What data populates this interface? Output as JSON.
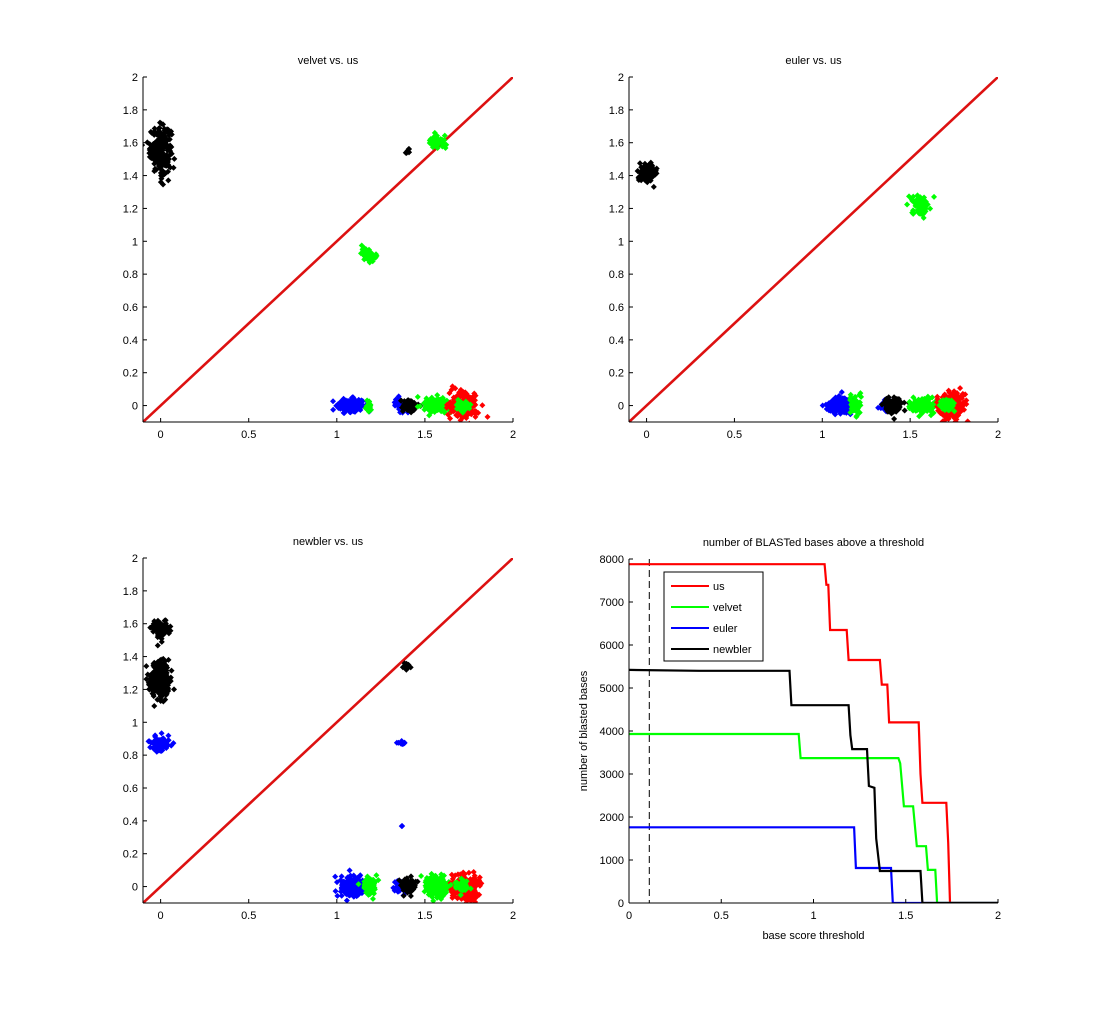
{
  "figure": {
    "background": "#ffffff"
  },
  "colors": {
    "us": "#ff0000",
    "velvet": "#00ff00",
    "euler": "#0000ff",
    "newbler": "#000000",
    "diagonal": "#dd1111"
  },
  "chart_data": [
    {
      "id": "velvet-vs-us",
      "type": "scatter",
      "title": "velvet vs. us",
      "xlabel": "",
      "ylabel": "",
      "xlim": [
        -0.1,
        2
      ],
      "ylim": [
        -0.1,
        2
      ],
      "xticks": [
        0,
        0.5,
        1,
        1.5,
        2
      ],
      "xtick_labels": [
        "0",
        "0.5",
        "1",
        "1.5",
        "2"
      ],
      "yticks": [
        0,
        0.2,
        0.4,
        0.6,
        0.8,
        1,
        1.2,
        1.4,
        1.6,
        1.8,
        2
      ],
      "ytick_labels": [
        "0",
        "0.2",
        "0.4",
        "0.6",
        "0.8",
        "1",
        "1.2",
        "1.4",
        "1.6",
        "1.8",
        "2"
      ],
      "grid": false,
      "reference_line": {
        "from": [
          -0.1,
          -0.1
        ],
        "to": [
          2,
          2
        ],
        "color_key": "diagonal"
      },
      "clusters": [
        {
          "series": "newbler",
          "x": 0.0,
          "y": 1.56,
          "sx": 0.03,
          "sy": 0.07,
          "n": 220
        },
        {
          "series": "newbler",
          "x": 1.4,
          "y": 1.55,
          "sx": 0.008,
          "sy": 0.008,
          "n": 8
        },
        {
          "series": "velvet",
          "x": 1.57,
          "y": 1.6,
          "sx": 0.025,
          "sy": 0.02,
          "n": 50
        },
        {
          "series": "velvet",
          "x": 1.18,
          "y": 0.92,
          "sx": 0.02,
          "sy": 0.02,
          "n": 50
        },
        {
          "series": "euler",
          "x": 1.08,
          "y": 0.0,
          "sx": 0.035,
          "sy": 0.02,
          "n": 200
        },
        {
          "series": "velvet",
          "x": 1.18,
          "y": 0.0,
          "sx": 0.012,
          "sy": 0.015,
          "n": 25
        },
        {
          "series": "euler",
          "x": 1.36,
          "y": 0.0,
          "sx": 0.015,
          "sy": 0.02,
          "n": 50
        },
        {
          "series": "newbler",
          "x": 1.41,
          "y": 0.0,
          "sx": 0.025,
          "sy": 0.02,
          "n": 90
        },
        {
          "series": "velvet",
          "x": 1.57,
          "y": 0.0,
          "sx": 0.035,
          "sy": 0.02,
          "n": 180
        },
        {
          "series": "us",
          "x": 1.72,
          "y": 0.0,
          "sx": 0.04,
          "sy": 0.04,
          "n": 200
        },
        {
          "series": "velvet",
          "x": 1.71,
          "y": 0.0,
          "sx": 0.02,
          "sy": 0.018,
          "n": 60
        }
      ]
    },
    {
      "id": "euler-vs-us",
      "type": "scatter",
      "title": "euler vs. us",
      "xlabel": "",
      "ylabel": "",
      "xlim": [
        -0.1,
        2
      ],
      "ylim": [
        -0.1,
        2
      ],
      "xticks": [
        0,
        0.5,
        1,
        1.5,
        2
      ],
      "xtick_labels": [
        "0",
        "0.5",
        "1",
        "1.5",
        "2"
      ],
      "yticks": [
        0,
        0.2,
        0.4,
        0.6,
        0.8,
        1,
        1.2,
        1.4,
        1.6,
        1.8,
        2
      ],
      "ytick_labels": [
        "0",
        "0.2",
        "0.4",
        "0.6",
        "0.8",
        "1",
        "1.2",
        "1.4",
        "1.6",
        "1.8",
        "2"
      ],
      "grid": false,
      "reference_line": {
        "from": [
          -0.1,
          -0.1
        ],
        "to": [
          2,
          2
        ],
        "color_key": "diagonal"
      },
      "clusters": [
        {
          "series": "newbler",
          "x": 0.01,
          "y": 1.42,
          "sx": 0.025,
          "sy": 0.025,
          "n": 120
        },
        {
          "series": "velvet",
          "x": 1.56,
          "y": 1.22,
          "sx": 0.025,
          "sy": 0.03,
          "n": 80
        },
        {
          "series": "euler",
          "x": 1.09,
          "y": 0.0,
          "sx": 0.035,
          "sy": 0.025,
          "n": 200
        },
        {
          "series": "velvet",
          "x": 1.19,
          "y": 0.0,
          "sx": 0.02,
          "sy": 0.03,
          "n": 50
        },
        {
          "series": "euler",
          "x": 1.36,
          "y": 0.0,
          "sx": 0.015,
          "sy": 0.02,
          "n": 50
        },
        {
          "series": "newbler",
          "x": 1.4,
          "y": 0.0,
          "sx": 0.025,
          "sy": 0.022,
          "n": 100
        },
        {
          "series": "velvet",
          "x": 1.57,
          "y": 0.0,
          "sx": 0.035,
          "sy": 0.02,
          "n": 140
        },
        {
          "series": "us",
          "x": 1.74,
          "y": 0.0,
          "sx": 0.035,
          "sy": 0.04,
          "n": 220
        },
        {
          "series": "velvet",
          "x": 1.71,
          "y": 0.0,
          "sx": 0.02,
          "sy": 0.02,
          "n": 60
        }
      ]
    },
    {
      "id": "newbler-vs-us",
      "type": "scatter",
      "title": "newbler vs. us",
      "xlabel": "",
      "ylabel": "",
      "xlim": [
        -0.1,
        2
      ],
      "ylim": [
        -0.1,
        2
      ],
      "xticks": [
        0,
        0.5,
        1,
        1.5,
        2
      ],
      "xtick_labels": [
        "0",
        "0.5",
        "1",
        "1.5",
        "2"
      ],
      "yticks": [
        0,
        0.2,
        0.4,
        0.6,
        0.8,
        1,
        1.2,
        1.4,
        1.6,
        1.8,
        2
      ],
      "ytick_labels": [
        "0",
        "0.2",
        "0.4",
        "0.6",
        "0.8",
        "1",
        "1.2",
        "1.4",
        "1.6",
        "1.8",
        "2"
      ],
      "grid": false,
      "reference_line": {
        "from": [
          -0.1,
          -0.1
        ],
        "to": [
          2,
          2
        ],
        "color_key": "diagonal"
      },
      "clusters": [
        {
          "series": "newbler",
          "x": 0.0,
          "y": 1.57,
          "sx": 0.025,
          "sy": 0.025,
          "n": 90
        },
        {
          "series": "newbler",
          "x": 0.0,
          "y": 1.26,
          "sx": 0.03,
          "sy": 0.06,
          "n": 260
        },
        {
          "series": "euler",
          "x": 0.0,
          "y": 0.87,
          "sx": 0.025,
          "sy": 0.02,
          "n": 90
        },
        {
          "series": "newbler",
          "x": 1.4,
          "y": 1.34,
          "sx": 0.012,
          "sy": 0.01,
          "n": 15
        },
        {
          "series": "euler",
          "x": 1.37,
          "y": 0.875,
          "sx": 0.01,
          "sy": 0.005,
          "n": 12
        },
        {
          "series": "euler",
          "x": 1.37,
          "y": 0.37,
          "sx": 0.003,
          "sy": 0.003,
          "n": 2
        },
        {
          "series": "euler",
          "x": 1.08,
          "y": 0.0,
          "sx": 0.035,
          "sy": 0.03,
          "n": 200
        },
        {
          "series": "velvet",
          "x": 1.18,
          "y": 0.0,
          "sx": 0.02,
          "sy": 0.025,
          "n": 70
        },
        {
          "series": "euler",
          "x": 1.36,
          "y": 0.0,
          "sx": 0.015,
          "sy": 0.02,
          "n": 45
        },
        {
          "series": "newbler",
          "x": 1.41,
          "y": 0.0,
          "sx": 0.02,
          "sy": 0.022,
          "n": 90
        },
        {
          "series": "velvet",
          "x": 1.57,
          "y": 0.0,
          "sx": 0.035,
          "sy": 0.03,
          "n": 220
        },
        {
          "series": "us",
          "x": 1.73,
          "y": -0.01,
          "sx": 0.035,
          "sy": 0.04,
          "n": 240
        },
        {
          "series": "velvet",
          "x": 1.71,
          "y": 0.0,
          "sx": 0.02,
          "sy": 0.02,
          "n": 60
        }
      ]
    },
    {
      "id": "blasted-bases",
      "type": "line",
      "title": "number of BLASTed bases above a threshold",
      "xlabel": "base score threshold",
      "ylabel": "number of blasted bases",
      "xlim": [
        0,
        2
      ],
      "ylim": [
        0,
        8000
      ],
      "xticks": [
        0,
        0.5,
        1,
        1.5,
        2
      ],
      "xtick_labels": [
        "0",
        "0.5",
        "1",
        "1.5",
        "2"
      ],
      "yticks": [
        0,
        1000,
        2000,
        3000,
        4000,
        5000,
        6000,
        7000,
        8000
      ],
      "ytick_labels": [
        "0",
        "1000",
        "2000",
        "3000",
        "4000",
        "5000",
        "6000",
        "7000",
        "8000"
      ],
      "grid": false,
      "legend_position": "top-left",
      "vertical_reference": {
        "x": 0.11,
        "style": "dashed",
        "color": "#000000"
      },
      "series": [
        {
          "name": "us",
          "color_key": "us",
          "x": [
            0,
            1.06,
            1.07,
            1.08,
            1.09,
            1.1,
            1.18,
            1.19,
            1.2,
            1.36,
            1.37,
            1.4,
            1.41,
            1.57,
            1.58,
            1.59,
            1.6,
            1.72,
            1.73,
            1.74,
            2
          ],
          "y": [
            7880,
            7880,
            7400,
            7400,
            6350,
            6350,
            6350,
            5650,
            5650,
            5650,
            5080,
            5080,
            4200,
            4200,
            3000,
            2330,
            2330,
            2330,
            1400,
            0,
            0
          ]
        },
        {
          "name": "velvet",
          "color_key": "velvet",
          "x": [
            0,
            0.92,
            0.93,
            1.46,
            1.47,
            1.49,
            1.54,
            1.56,
            1.61,
            1.62,
            1.66,
            1.67,
            2
          ],
          "y": [
            3930,
            3930,
            3370,
            3370,
            3250,
            2250,
            2250,
            1320,
            1320,
            770,
            770,
            0,
            0
          ]
        },
        {
          "name": "euler",
          "color_key": "euler",
          "x": [
            0,
            1.22,
            1.23,
            1.42,
            1.43,
            2
          ],
          "y": [
            1760,
            1760,
            815,
            815,
            0,
            0
          ]
        },
        {
          "name": "newbler",
          "color_key": "newbler",
          "x": [
            0,
            0.38,
            0.87,
            0.88,
            1.19,
            1.2,
            1.21,
            1.29,
            1.3,
            1.33,
            1.34,
            1.36,
            1.37,
            1.58,
            1.59,
            2
          ],
          "y": [
            5420,
            5400,
            5400,
            4600,
            4600,
            3900,
            3580,
            3580,
            2720,
            2680,
            1500,
            745,
            745,
            745,
            0,
            0
          ]
        }
      ],
      "legend": [
        {
          "label": "us",
          "color_key": "us"
        },
        {
          "label": "velvet",
          "color_key": "velvet"
        },
        {
          "label": "euler",
          "color_key": "euler"
        },
        {
          "label": "newbler",
          "color_key": "newbler"
        }
      ]
    }
  ]
}
